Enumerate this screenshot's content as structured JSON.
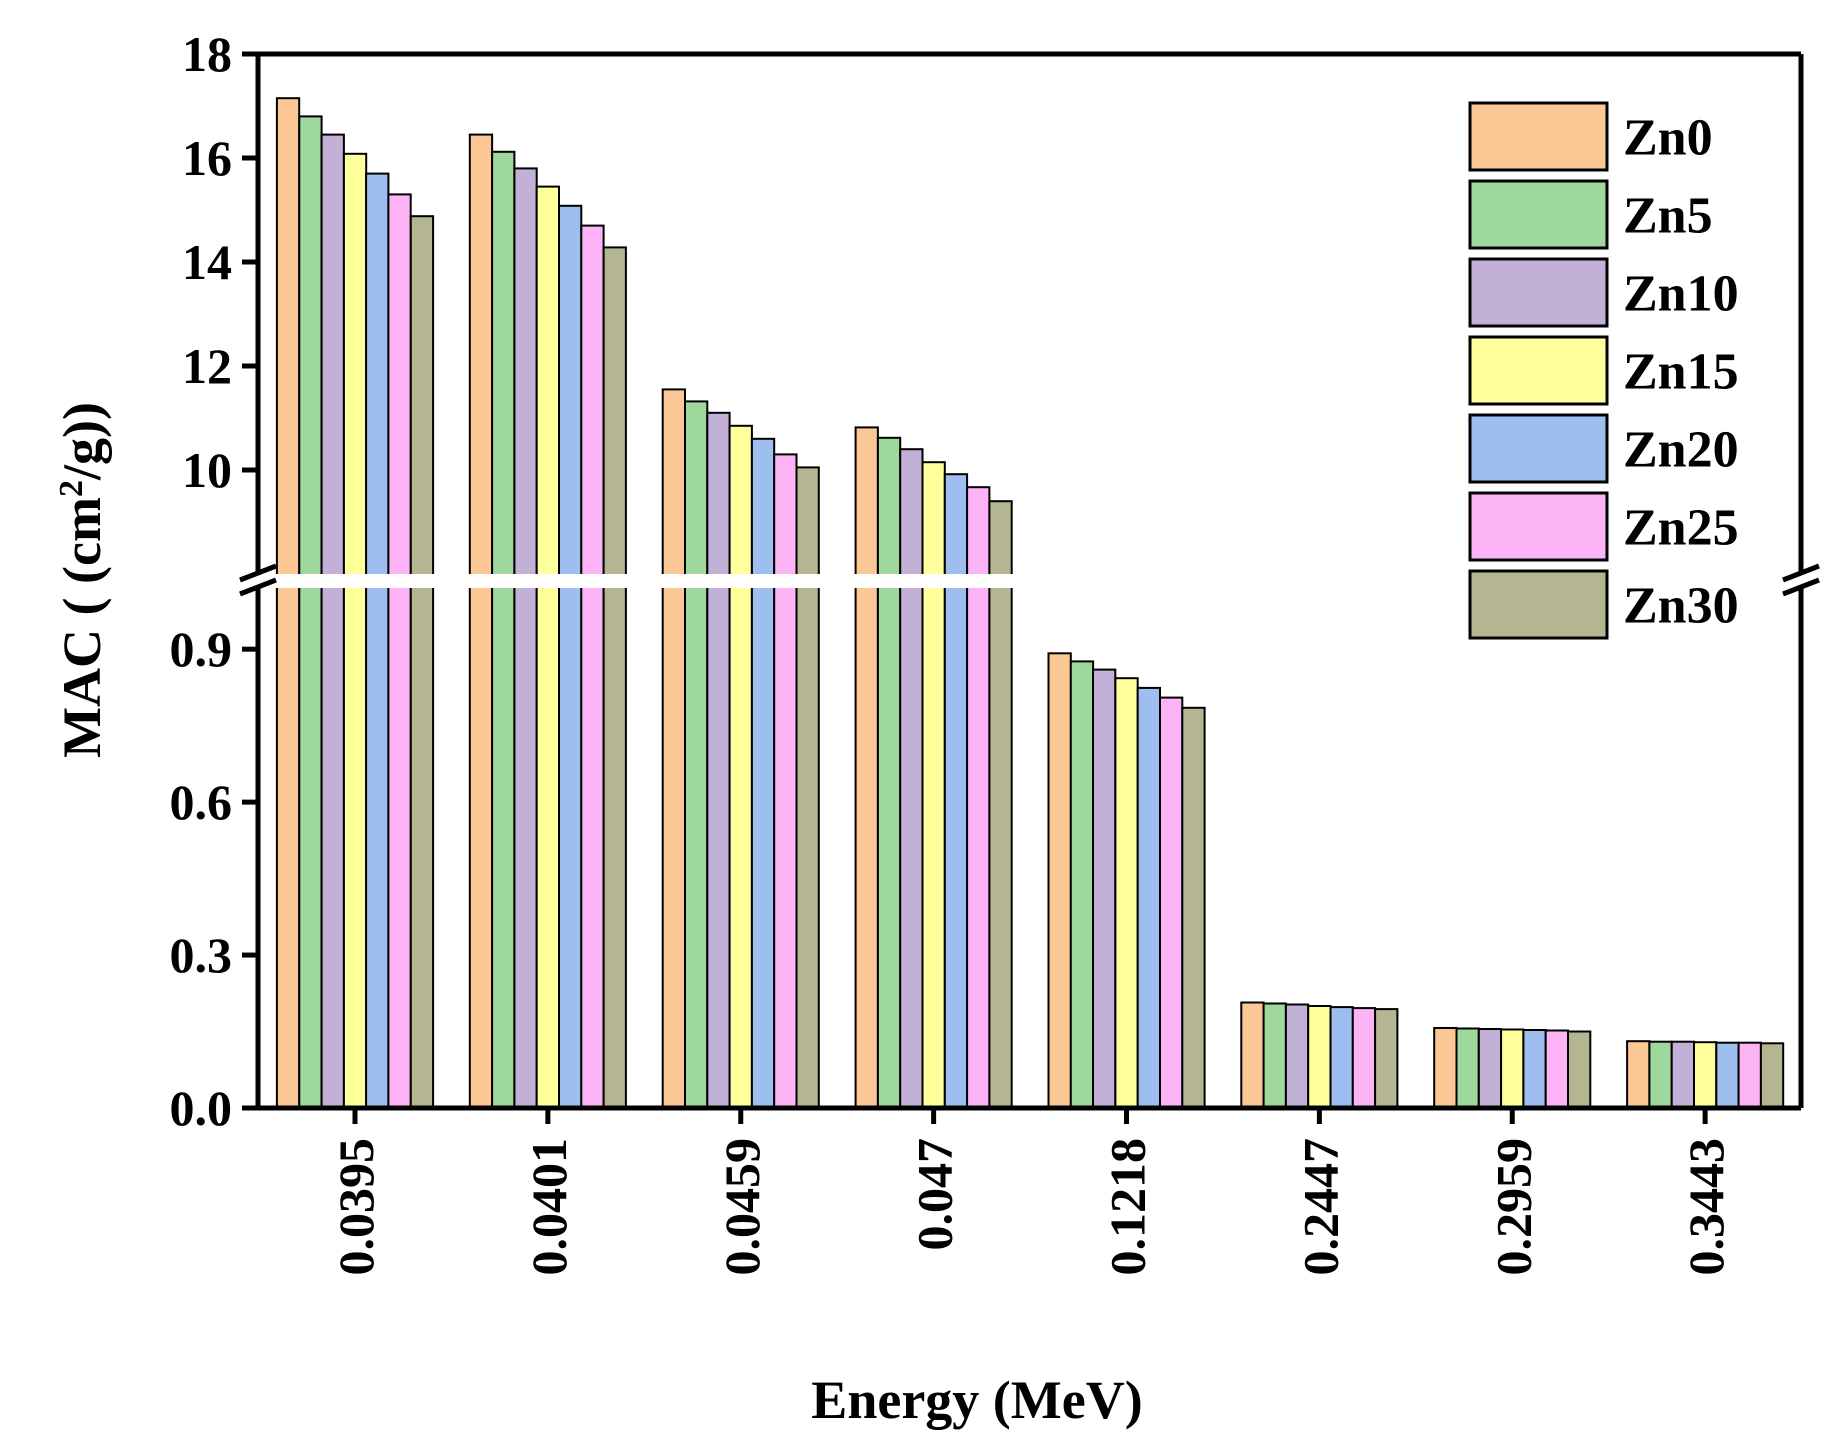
{
  "chart_data": {
    "type": "bar",
    "xlabel": "Energy (MeV)",
    "ylabel": {
      "prefix": "MAC ( (cm",
      "sup": "2",
      "suffix": "/g))"
    },
    "categories": [
      "0.0395",
      "0.0401",
      "0.0459",
      "0.047",
      "0.1218",
      "0.2447",
      "0.2959",
      "0.3443"
    ],
    "axis_break": {
      "lower_range": [
        0,
        1.02
      ],
      "upper_range": [
        8.0,
        18
      ]
    },
    "lower_ticks": [
      "0.0",
      "0.3",
      "0.6",
      "0.9"
    ],
    "upper_ticks": [
      "10",
      "12",
      "14",
      "16",
      "18"
    ],
    "legend_position": "top-right",
    "series": [
      {
        "name": "Zn0",
        "color": "#FBC795",
        "values": [
          17.15,
          16.45,
          11.55,
          10.82,
          0.892,
          0.207,
          0.157,
          0.131
        ]
      },
      {
        "name": "Zn5",
        "color": "#9ED89C",
        "values": [
          16.8,
          16.12,
          11.32,
          10.62,
          0.876,
          0.205,
          0.156,
          0.13
        ]
      },
      {
        "name": "Zn10",
        "color": "#C2B0D6",
        "values": [
          16.45,
          15.8,
          11.1,
          10.4,
          0.86,
          0.203,
          0.155,
          0.13
        ]
      },
      {
        "name": "Zn15",
        "color": "#FFFF9C",
        "values": [
          16.08,
          15.45,
          10.85,
          10.15,
          0.843,
          0.2,
          0.154,
          0.129
        ]
      },
      {
        "name": "Zn20",
        "color": "#9EBEF0",
        "values": [
          15.7,
          15.08,
          10.6,
          9.92,
          0.824,
          0.198,
          0.153,
          0.128
        ]
      },
      {
        "name": "Zn25",
        "color": "#FDB4F6",
        "values": [
          15.3,
          14.7,
          10.3,
          9.67,
          0.805,
          0.196,
          0.152,
          0.128
        ]
      },
      {
        "name": "Zn30",
        "color": "#B3B690",
        "values": [
          14.88,
          14.28,
          10.05,
          9.4,
          0.785,
          0.194,
          0.15,
          0.127
        ]
      }
    ]
  }
}
